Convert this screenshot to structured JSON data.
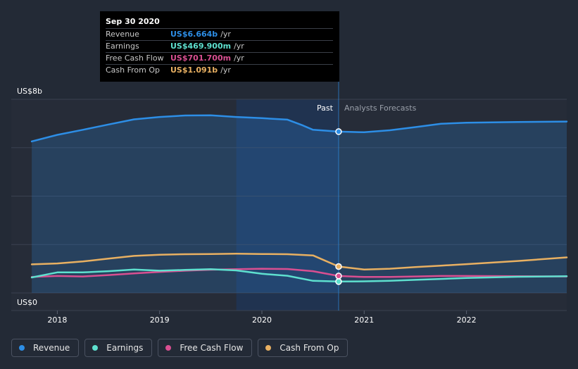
{
  "tooltip": {
    "date": "Sep 30 2020",
    "rows": [
      {
        "label": "Revenue",
        "value": "US$6.664b",
        "unit": "/yr",
        "color": "#2d8ee6"
      },
      {
        "label": "Earnings",
        "value": "US$469.900m",
        "unit": "/yr",
        "color": "#5ee0cf"
      },
      {
        "label": "Free Cash Flow",
        "value": "US$701.700m",
        "unit": "/yr",
        "color": "#d94f91"
      },
      {
        "label": "Cash From Op",
        "value": "US$1.091b",
        "unit": "/yr",
        "color": "#e8b062"
      }
    ]
  },
  "legend": [
    {
      "label": "Revenue",
      "color": "#2d8ee6"
    },
    {
      "label": "Earnings",
      "color": "#5ee0cf"
    },
    {
      "label": "Free Cash Flow",
      "color": "#d94f91"
    },
    {
      "label": "Cash From Op",
      "color": "#e8b062"
    }
  ],
  "chart_data": {
    "type": "line",
    "past_label": "Past",
    "forecast_label": "Analysts Forecasts",
    "y_top_label": "US$8b",
    "y_bottom_label": "US$0",
    "ylim": [
      0,
      8
    ],
    "xlim": [
      2017.55,
      2022.98
    ],
    "divider_x": 2020.75,
    "highlight_start_x": 2019.75,
    "x_ticks": [
      {
        "value": 2018,
        "label": "2018"
      },
      {
        "value": 2019,
        "label": "2019"
      },
      {
        "value": 2020,
        "label": "2020"
      },
      {
        "value": 2021,
        "label": "2021"
      },
      {
        "value": 2022,
        "label": "2022"
      }
    ],
    "series": [
      {
        "name": "Revenue",
        "color": "#2d8ee6",
        "fill": true,
        "points": [
          [
            2017.75,
            6.26
          ],
          [
            2018.0,
            6.53
          ],
          [
            2018.25,
            6.74
          ],
          [
            2018.5,
            6.96
          ],
          [
            2018.75,
            7.17
          ],
          [
            2019.0,
            7.27
          ],
          [
            2019.25,
            7.33
          ],
          [
            2019.5,
            7.34
          ],
          [
            2019.75,
            7.27
          ],
          [
            2020.0,
            7.22
          ],
          [
            2020.25,
            7.16
          ],
          [
            2020.4,
            6.92
          ],
          [
            2020.5,
            6.74
          ],
          [
            2020.75,
            6.664
          ],
          [
            2021.0,
            6.64
          ],
          [
            2021.25,
            6.72
          ],
          [
            2021.5,
            6.85
          ],
          [
            2021.75,
            6.99
          ],
          [
            2022.0,
            7.03
          ],
          [
            2022.5,
            7.06
          ],
          [
            2022.98,
            7.08
          ]
        ]
      },
      {
        "name": "Cash From Op",
        "color": "#e8b062",
        "fill": false,
        "points": [
          [
            2017.75,
            1.18
          ],
          [
            2018.0,
            1.22
          ],
          [
            2018.25,
            1.3
          ],
          [
            2018.5,
            1.42
          ],
          [
            2018.75,
            1.53
          ],
          [
            2019.0,
            1.58
          ],
          [
            2019.25,
            1.6
          ],
          [
            2019.5,
            1.61
          ],
          [
            2019.75,
            1.62
          ],
          [
            2020.0,
            1.61
          ],
          [
            2020.25,
            1.6
          ],
          [
            2020.5,
            1.55
          ],
          [
            2020.75,
            1.091
          ],
          [
            2021.0,
            0.97
          ],
          [
            2021.25,
            1.0
          ],
          [
            2021.5,
            1.07
          ],
          [
            2021.75,
            1.13
          ],
          [
            2022.0,
            1.19
          ],
          [
            2022.5,
            1.32
          ],
          [
            2022.98,
            1.47
          ]
        ]
      },
      {
        "name": "Free Cash Flow",
        "color": "#d94f91",
        "fill": false,
        "points": [
          [
            2017.75,
            0.66
          ],
          [
            2018.0,
            0.7
          ],
          [
            2018.25,
            0.68
          ],
          [
            2018.5,
            0.74
          ],
          [
            2018.75,
            0.81
          ],
          [
            2019.0,
            0.87
          ],
          [
            2019.25,
            0.92
          ],
          [
            2019.5,
            0.96
          ],
          [
            2019.75,
            0.98
          ],
          [
            2020.0,
            1.0
          ],
          [
            2020.25,
            0.99
          ],
          [
            2020.5,
            0.9
          ],
          [
            2020.75,
            0.7017
          ],
          [
            2021.0,
            0.66
          ],
          [
            2021.25,
            0.66
          ],
          [
            2021.5,
            0.68
          ],
          [
            2021.75,
            0.7
          ],
          [
            2022.0,
            0.7
          ],
          [
            2022.5,
            0.69
          ],
          [
            2022.98,
            0.68
          ]
        ]
      },
      {
        "name": "Earnings",
        "color": "#5ee0cf",
        "fill": false,
        "points": [
          [
            2017.75,
            0.64
          ],
          [
            2018.0,
            0.85
          ],
          [
            2018.25,
            0.85
          ],
          [
            2018.5,
            0.9
          ],
          [
            2018.75,
            0.97
          ],
          [
            2019.0,
            0.92
          ],
          [
            2019.25,
            0.95
          ],
          [
            2019.5,
            0.98
          ],
          [
            2019.75,
            0.93
          ],
          [
            2020.0,
            0.79
          ],
          [
            2020.25,
            0.71
          ],
          [
            2020.5,
            0.5
          ],
          [
            2020.75,
            0.4699
          ],
          [
            2021.0,
            0.48
          ],
          [
            2021.25,
            0.5
          ],
          [
            2021.5,
            0.54
          ],
          [
            2021.75,
            0.58
          ],
          [
            2022.0,
            0.62
          ],
          [
            2022.5,
            0.67
          ],
          [
            2022.98,
            0.69
          ]
        ]
      }
    ]
  }
}
